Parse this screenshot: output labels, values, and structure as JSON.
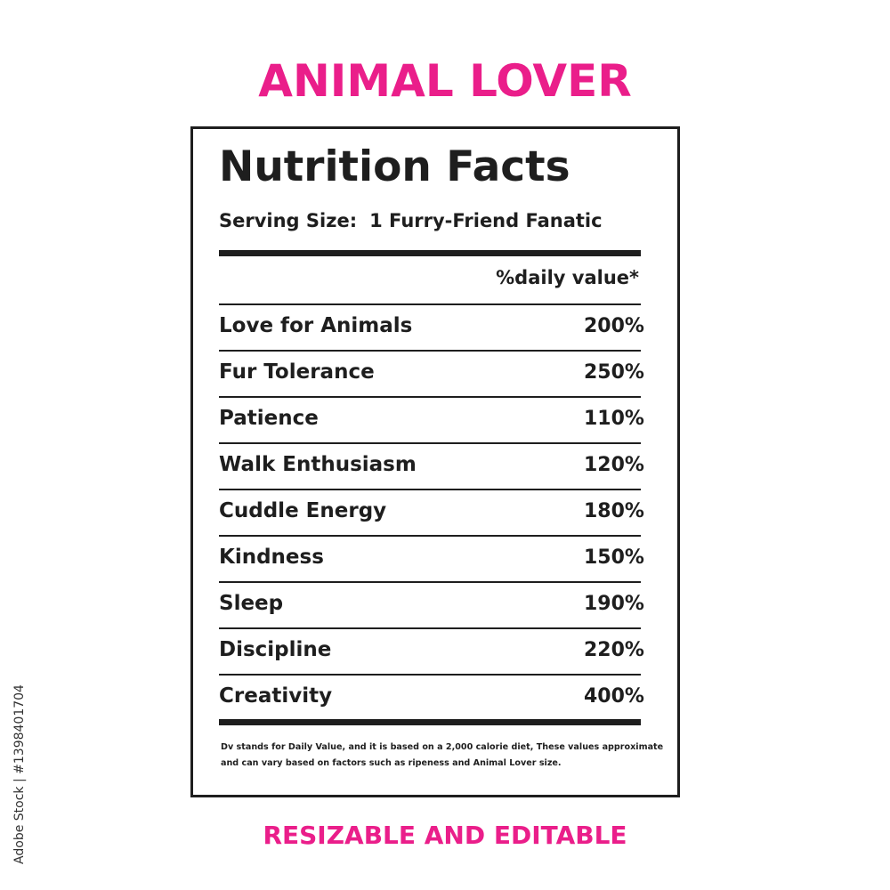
{
  "header": {
    "title": "ANIMAL LOVER"
  },
  "label": {
    "heading": "Nutrition Facts",
    "serving_label": "Serving Size:",
    "serving_value": "1 Furry-Friend Fanatic",
    "column_header": "%daily value*",
    "rows": [
      [
        "Love for Animals",
        "200%"
      ],
      [
        "Fur Tolerance",
        "250%"
      ],
      [
        "Patience",
        "110%"
      ],
      [
        "Walk Enthusiasm",
        "120%"
      ],
      [
        "Cuddle Energy",
        "180%"
      ],
      [
        "Kindness",
        "150%"
      ],
      [
        "Sleep",
        "190%"
      ],
      [
        "Discipline",
        "220%"
      ],
      [
        "Creativity",
        "400%"
      ]
    ],
    "footnote": [
      "Dv stands for Daily Value, and it is based on a 2,000 calorie diet, These values approximate",
      "and can vary based on factors such as ripeness and Animal Lover size."
    ]
  },
  "footer": {
    "caption": "RESIZABLE AND EDITABLE"
  },
  "stock_id": "Adobe Stock | #1398401704"
}
